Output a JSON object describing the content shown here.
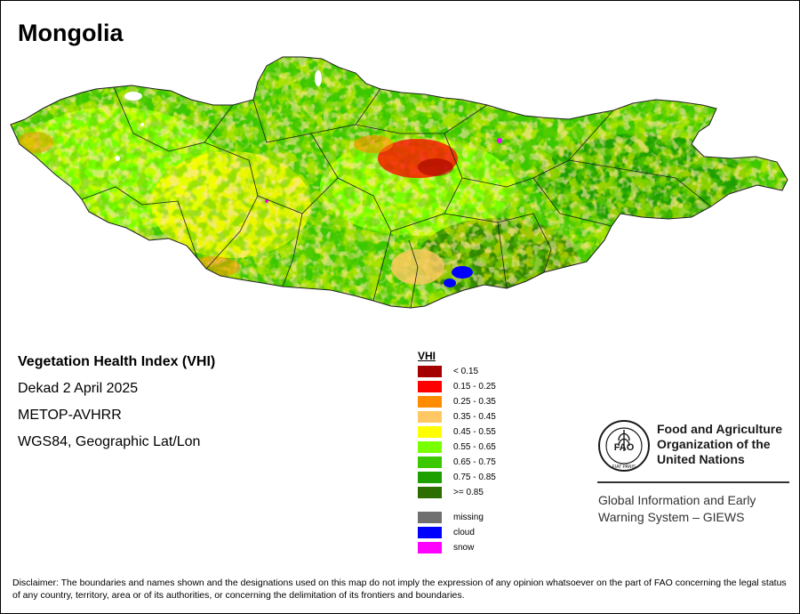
{
  "map": {
    "title": "Mongolia",
    "info": {
      "index_name": "Vegetation Health Index (VHI)",
      "period": "Dekad 2 April 2025",
      "sensor": "METOP-AVHRR",
      "projection": "WGS84, Geographic Lat/Lon"
    },
    "legend": {
      "title": "VHI",
      "classes": [
        {
          "label": "< 0.15",
          "color": "#a50000"
        },
        {
          "label": "0.15 - 0.25",
          "color": "#ff0000"
        },
        {
          "label": "0.25 - 0.35",
          "color": "#ff8c00"
        },
        {
          "label": "0.35 - 0.45",
          "color": "#ffc864"
        },
        {
          "label": "0.45 - 0.55",
          "color": "#ffff00"
        },
        {
          "label": "0.55 - 0.65",
          "color": "#78ff00"
        },
        {
          "label": "0.65 - 0.75",
          "color": "#3cc800"
        },
        {
          "label": "0.75 - 0.85",
          "color": "#1ea000"
        },
        {
          "label": ">= 0.85",
          "color": "#2d6e00"
        }
      ],
      "special": [
        {
          "label": "missing",
          "color": "#707070"
        },
        {
          "label": "cloud",
          "color": "#0000ff"
        },
        {
          "label": "snow",
          "color": "#ff00ff"
        }
      ]
    },
    "organization": {
      "logo_text": "FAO",
      "logo_motto": "FIAT PANIS",
      "name_line1": "Food and Agriculture",
      "name_line2": "Organization of the",
      "name_line3": "United Nations",
      "system_line1": "Global Information and Early",
      "system_line2": "Warning System – GIEWS"
    },
    "disclaimer": "Disclaimer: The boundaries and names shown and the designations used on this map do not imply the expression of any opinion whatsoever on the part of FAO concerning the legal status of any country, territory, area or of its authorities, or concerning the delimitation of its frontiers and boundaries."
  }
}
